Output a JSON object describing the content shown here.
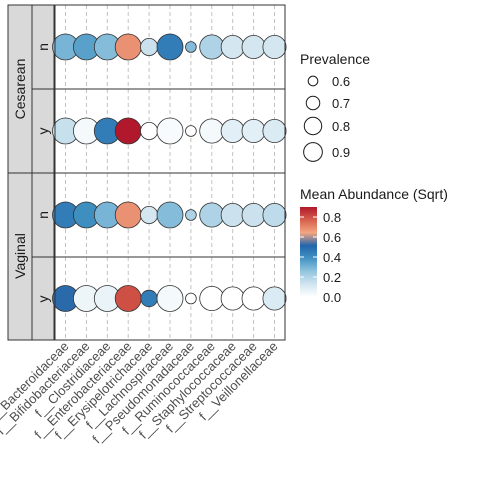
{
  "chart_data": {
    "type": "scatter",
    "x_categories": [
      "f__Bacteroidaceae",
      "f__Bifidobacteriaceae",
      "f__Clostridiaceae",
      "f__Enterobacteriaceae",
      "f__Erysipelotrichaceae",
      "f__Lachnospiraceae",
      "f__Pseudomonadaceae",
      "f__Ruminococcaceae",
      "f__Staphylococcaceae",
      "f__Streptococcaceae",
      "f__Veillonellaceae"
    ],
    "outer_facets": [
      "Cesarean",
      "Vaginal"
    ],
    "inner_facets": [
      "n",
      "y"
    ],
    "rows": [
      {
        "outer": "Cesarean",
        "inner": "n",
        "prevalence": [
          0.88,
          0.88,
          0.86,
          0.88,
          0.67,
          0.88,
          0.55,
          0.8,
          0.78,
          0.78,
          0.78
        ],
        "mean_abundance": [
          0.3,
          0.35,
          0.28,
          0.68,
          0.14,
          0.45,
          0.28,
          0.2,
          0.12,
          0.12,
          0.12
        ]
      },
      {
        "outer": "Cesarean",
        "inner": "y",
        "prevalence": [
          0.89,
          0.89,
          0.89,
          0.92,
          0.67,
          0.89,
          0.55,
          0.8,
          0.78,
          0.78,
          0.78
        ],
        "mean_abundance": [
          0.15,
          0.03,
          0.45,
          0.9,
          0.0,
          0.02,
          0.0,
          0.03,
          0.08,
          0.08,
          0.1
        ]
      },
      {
        "outer": "Vaginal",
        "inner": "n",
        "prevalence": [
          0.89,
          0.89,
          0.87,
          0.89,
          0.67,
          0.87,
          0.55,
          0.8,
          0.78,
          0.78,
          0.78
        ],
        "mean_abundance": [
          0.45,
          0.4,
          0.3,
          0.68,
          0.12,
          0.28,
          0.2,
          0.2,
          0.14,
          0.14,
          0.17
        ]
      },
      {
        "outer": "Vaginal",
        "inner": "y",
        "prevalence": [
          0.89,
          0.89,
          0.87,
          0.89,
          0.66,
          0.88,
          0.55,
          0.8,
          0.78,
          0.78,
          0.78
        ],
        "mean_abundance": [
          0.52,
          0.05,
          0.06,
          0.8,
          0.45,
          0.03,
          0.0,
          0.0,
          0.0,
          0.0,
          0.1
        ]
      }
    ],
    "size_legend": {
      "title": "Prevalence",
      "breaks": [
        0.6,
        0.7,
        0.8,
        0.9
      ],
      "labels": [
        "0.6",
        "0.7",
        "0.8",
        "0.9"
      ]
    },
    "color_legend": {
      "title": "Mean Abundance (Sqrt)",
      "labels": [
        "0.8",
        "0.6",
        "0.4",
        "0.2",
        "0.0"
      ],
      "breaks": [
        0.8,
        0.6,
        0.4,
        0.2,
        0.0
      ],
      "limits": [
        0,
        0.9
      ],
      "palette": [
        "#ffffff",
        "#d1e5f0",
        "#92c5de",
        "#4393c3",
        "#2166ac",
        "#f4a582",
        "#d6604d",
        "#b2182b"
      ]
    },
    "grid": true
  }
}
